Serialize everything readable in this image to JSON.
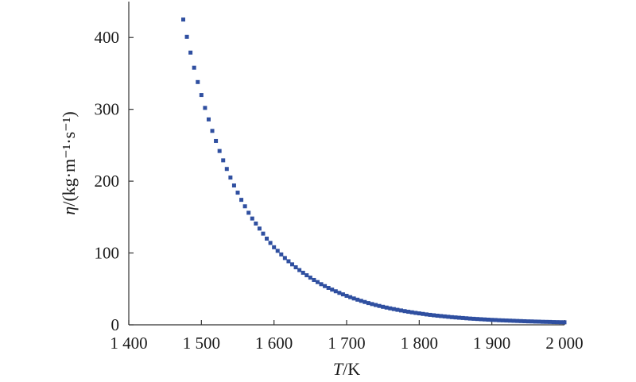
{
  "chart_data": {
    "type": "scatter",
    "title": "",
    "xlabel_italic": "T",
    "xlabel_rest": "/K",
    "ylabel_italic": "η",
    "ylabel_rest": "/(kg·m⁻¹·s⁻¹)",
    "xlim": [
      1400,
      2000
    ],
    "ylim": [
      0,
      450
    ],
    "xticks": [
      1400,
      1500,
      1600,
      1700,
      1800,
      1900,
      2000
    ],
    "xtick_labels": [
      "1 400",
      "1 500",
      "1 600",
      "1 700",
      "1 800",
      "1 900",
      "2 000"
    ],
    "yticks": [
      0,
      100,
      200,
      300,
      400
    ],
    "ytick_labels": [
      "0",
      "100",
      "200",
      "300",
      "400"
    ],
    "grid": false,
    "marker_color": "#2f4fa0",
    "series": [
      {
        "name": "",
        "x": [
          1475,
          1480,
          1485,
          1490,
          1495,
          1500,
          1505,
          1510,
          1515,
          1520,
          1525,
          1530,
          1535,
          1540,
          1545,
          1550,
          1555,
          1560,
          1565,
          1570,
          1575,
          1580,
          1585,
          1590,
          1595,
          1600,
          1605,
          1610,
          1615,
          1620,
          1625,
          1630,
          1635,
          1640,
          1645,
          1650,
          1655,
          1660,
          1665,
          1670,
          1675,
          1680,
          1685,
          1690,
          1695,
          1700,
          1705,
          1710,
          1715,
          1720,
          1725,
          1730,
          1735,
          1740,
          1745,
          1750,
          1755,
          1760,
          1765,
          1770,
          1775,
          1780,
          1785,
          1790,
          1795,
          1800,
          1805,
          1810,
          1815,
          1820,
          1825,
          1830,
          1835,
          1840,
          1845,
          1850,
          1855,
          1860,
          1865,
          1870,
          1875,
          1880,
          1885,
          1890,
          1895,
          1900,
          1905,
          1910,
          1915,
          1920,
          1925,
          1930,
          1935,
          1940,
          1945,
          1950,
          1955,
          1960,
          1965,
          1970,
          1975,
          1980,
          1985,
          1990,
          1995,
          2000
        ],
        "y": [
          425,
          401,
          379,
          358,
          338,
          320,
          302,
          286,
          270,
          256,
          242,
          229,
          217,
          205,
          194,
          184,
          174,
          165,
          156,
          148,
          141,
          134,
          127,
          120,
          114,
          108,
          103,
          98,
          93,
          88.5,
          84.2,
          80.1,
          76.2,
          72.5,
          69.0,
          65.7,
          62.5,
          59.5,
          56.6,
          53.9,
          51.4,
          49.0,
          46.7,
          44.5,
          42.4,
          40.4,
          38.5,
          36.7,
          35.0,
          33.4,
          31.8,
          30.3,
          28.9,
          27.6,
          26.3,
          25.1,
          24.0,
          22.9,
          21.9,
          20.9,
          20.0,
          19.1,
          18.2,
          17.4,
          16.6,
          15.9,
          15.2,
          14.5,
          13.9,
          13.3,
          12.7,
          12.2,
          11.7,
          11.2,
          10.7,
          10.3,
          9.9,
          9.5,
          9.1,
          8.7,
          8.4,
          8.1,
          7.8,
          7.5,
          7.2,
          6.9,
          6.7,
          6.4,
          6.2,
          6.0,
          5.8,
          5.6,
          5.4,
          5.2,
          5.0,
          4.8,
          4.7,
          4.5,
          4.4,
          4.2,
          4.1,
          4.0,
          3.8,
          3.7,
          3.6,
          3.5
        ]
      }
    ]
  }
}
